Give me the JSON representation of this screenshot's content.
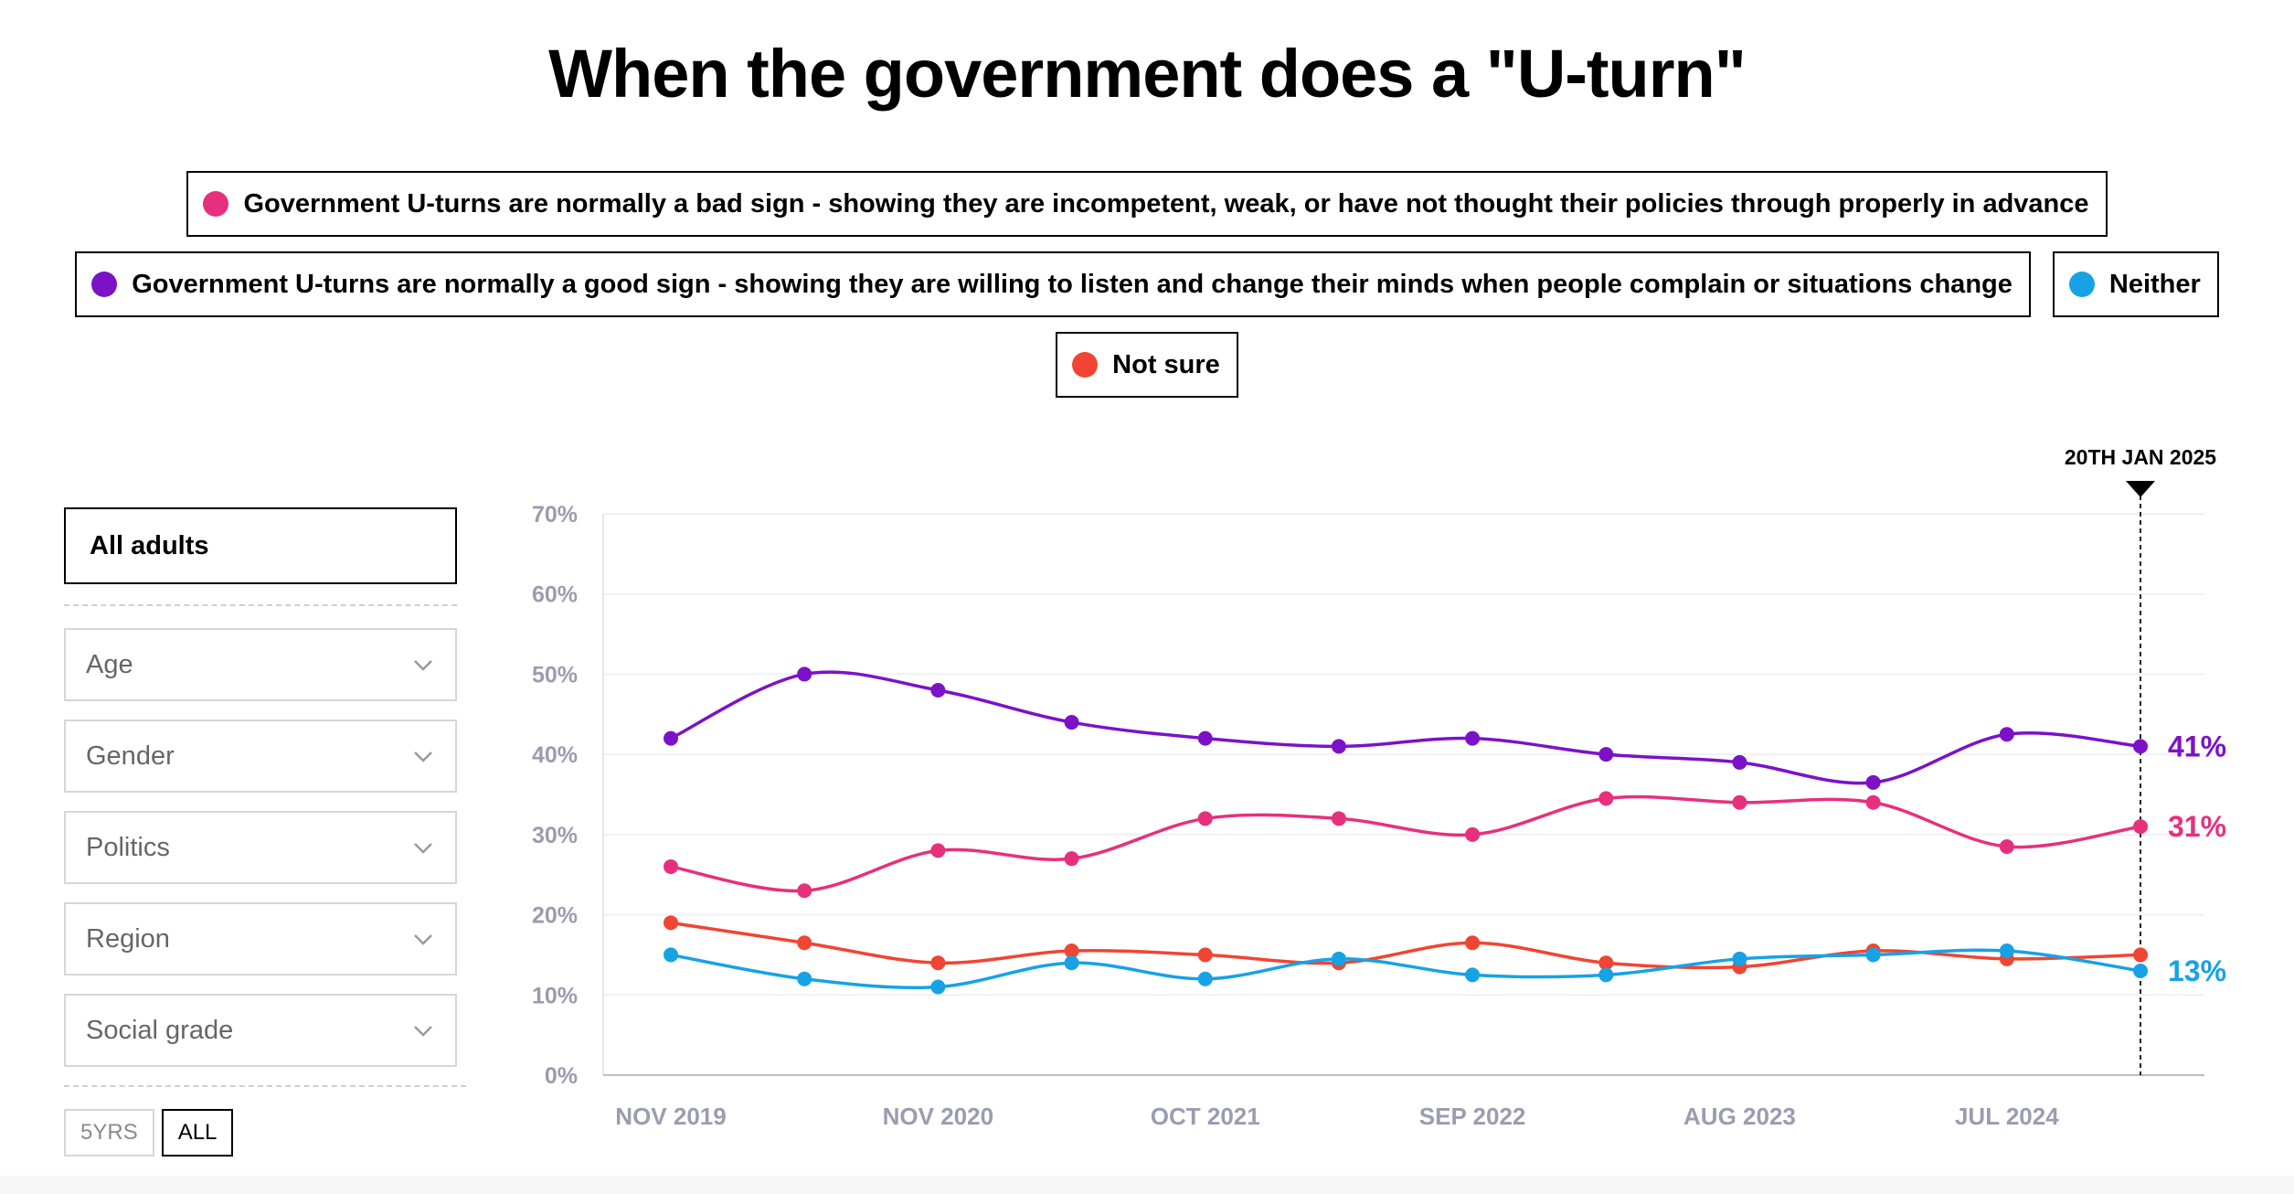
{
  "chart_data": {
    "type": "line",
    "title": "When the government does a \"U-turn\"",
    "x": [
      "2019-11-01",
      "2020-05-01",
      "2020-11-01",
      "2021-04-15",
      "2021-10-01",
      "2022-03-15",
      "2022-09-01",
      "2023-02-15",
      "2023-08-01",
      "2024-01-15",
      "2024-07-01",
      "2025-01-20"
    ],
    "xtick_labels": [
      "NOV 2019",
      "NOV 2020",
      "OCT 2021",
      "SEP 2022",
      "AUG 2023",
      "JUL 2024"
    ],
    "ylim": [
      0,
      70
    ],
    "ytick_labels": [
      "0%",
      "10%",
      "20%",
      "30%",
      "40%",
      "50%",
      "60%",
      "70%"
    ],
    "grid": true,
    "legend_placement": "top",
    "marker_label": "20TH JAN 2025",
    "series": [
      {
        "name": "Government U-turns are normally a bad sign - showing they are incompetent, weak, or have not thought their policies through properly in advance",
        "color": "#e6307e",
        "values": [
          26,
          23,
          28,
          27,
          32,
          32,
          30,
          34.5,
          34,
          34,
          28.5,
          31
        ],
        "end_label": "31%"
      },
      {
        "name": "Government U-turns are normally a good sign - showing they are willing to listen and change their minds when people complain or situations change",
        "color": "#7b12c8",
        "values": [
          42,
          50,
          48,
          44,
          42,
          41,
          42,
          40,
          39,
          36.5,
          42.5,
          41
        ],
        "end_label": "41%"
      },
      {
        "name": "Neither",
        "color": "#17a2e6",
        "values": [
          15,
          12,
          11,
          14,
          12,
          14.5,
          12.5,
          12.5,
          14.5,
          15,
          15.5,
          13
        ],
        "end_label": "13%"
      },
      {
        "name": "Not sure",
        "color": "#f04532",
        "values": [
          19,
          16.5,
          14,
          15.5,
          15,
          14,
          16.5,
          14,
          13.5,
          15.5,
          14.5,
          15
        ],
        "end_label": ""
      }
    ]
  },
  "sidebar": {
    "selected": "All adults",
    "filters": [
      "Age",
      "Gender",
      "Politics",
      "Region",
      "Social grade"
    ],
    "range_buttons": [
      "5YRS",
      "ALL"
    ],
    "active_range": "ALL"
  }
}
